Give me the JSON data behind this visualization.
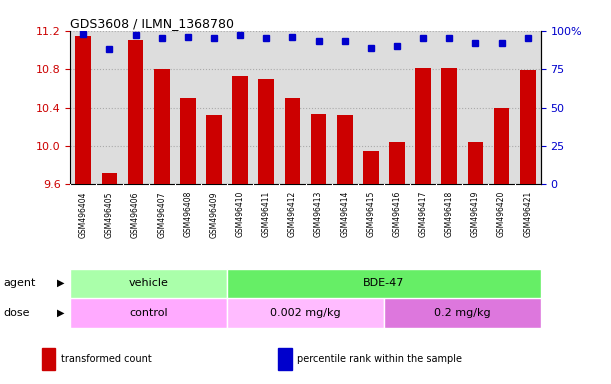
{
  "title": "GDS3608 / ILMN_1368780",
  "samples": [
    "GSM496404",
    "GSM496405",
    "GSM496406",
    "GSM496407",
    "GSM496408",
    "GSM496409",
    "GSM496410",
    "GSM496411",
    "GSM496412",
    "GSM496413",
    "GSM496414",
    "GSM496415",
    "GSM496416",
    "GSM496417",
    "GSM496418",
    "GSM496419",
    "GSM496420",
    "GSM496421"
  ],
  "bar_values": [
    11.15,
    9.72,
    11.1,
    10.8,
    10.5,
    10.32,
    10.73,
    10.7,
    10.5,
    10.33,
    10.32,
    9.95,
    10.04,
    10.81,
    10.81,
    10.04,
    10.4,
    10.79
  ],
  "percentile_values": [
    98,
    88,
    97,
    95,
    96,
    95,
    97,
    95,
    96,
    93,
    93,
    89,
    90,
    95,
    95,
    92,
    92,
    95
  ],
  "bar_color": "#cc0000",
  "percentile_color": "#0000cc",
  "ylim_left": [
    9.6,
    11.2
  ],
  "ylim_right": [
    0,
    100
  ],
  "yticks_left": [
    9.6,
    10.0,
    10.4,
    10.8,
    11.2
  ],
  "yticks_right": [
    0,
    25,
    50,
    75,
    100
  ],
  "agent_labels": [
    {
      "label": "vehicle",
      "start": 0,
      "end": 5,
      "color": "#aaffaa"
    },
    {
      "label": "BDE-47",
      "start": 6,
      "end": 17,
      "color": "#66ee66"
    }
  ],
  "dose_labels": [
    {
      "label": "control",
      "start": 0,
      "end": 5,
      "color": "#ffaaff"
    },
    {
      "label": "0.002 mg/kg",
      "start": 6,
      "end": 11,
      "color": "#ffbbff"
    },
    {
      "label": "0.2 mg/kg",
      "start": 12,
      "end": 17,
      "color": "#dd77dd"
    }
  ],
  "legend_items": [
    {
      "color": "#cc0000",
      "label": "transformed count"
    },
    {
      "color": "#0000cc",
      "label": "percentile rank within the sample"
    }
  ],
  "grid_color": "#aaaaaa",
  "tick_label_color_left": "#cc0000",
  "tick_label_color_right": "#0000cc",
  "plot_bg_color": "#dddddd",
  "tick_bg_color": "#cccccc"
}
